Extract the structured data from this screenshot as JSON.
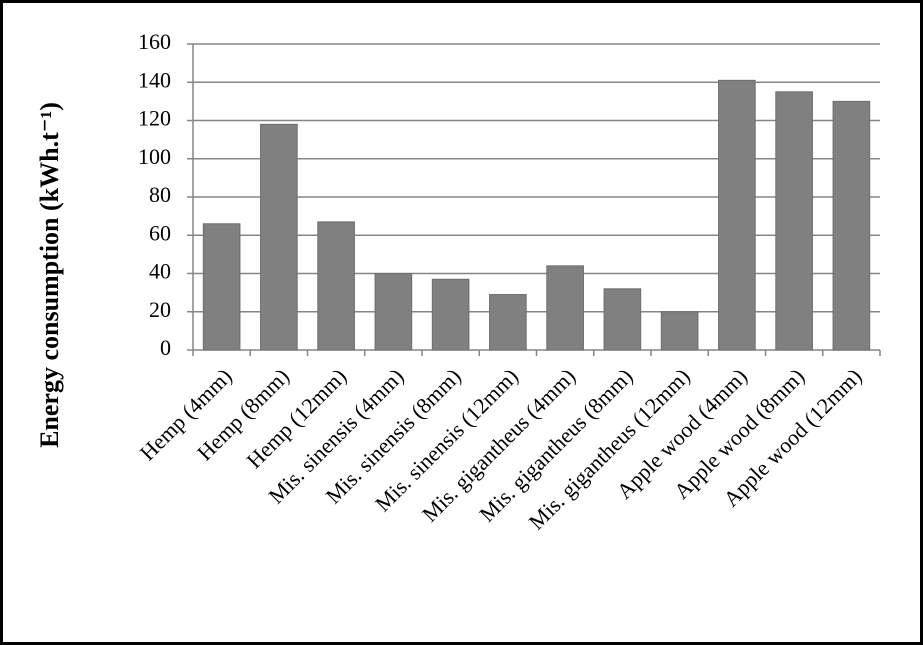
{
  "chart_data": {
    "type": "bar",
    "y_label": "Energy consumption (kWh.t⁻¹)",
    "categories": [
      "Hemp (4mm)",
      "Hemp (8mm)",
      "Hemp (12mm)",
      "Mis. sinensis (4mm)",
      "Mis. sinensis (8mm)",
      "Mis. sinensis (12mm)",
      "Mis. gigantheus (4mm)",
      "Mis. gigantheus (8mm)",
      "Mis. gigantheus (12mm)",
      "Apple wood (4mm)",
      "Apple wood (8mm)",
      "Apple wood (12mm)"
    ],
    "values": [
      66,
      118,
      67,
      40,
      37,
      29,
      44,
      32,
      20,
      141,
      135,
      130
    ],
    "color": "#808080",
    "ylim": [
      0,
      160
    ],
    "yticks": [
      0,
      20,
      40,
      60,
      80,
      100,
      120,
      140,
      160
    ],
    "grid": true
  }
}
